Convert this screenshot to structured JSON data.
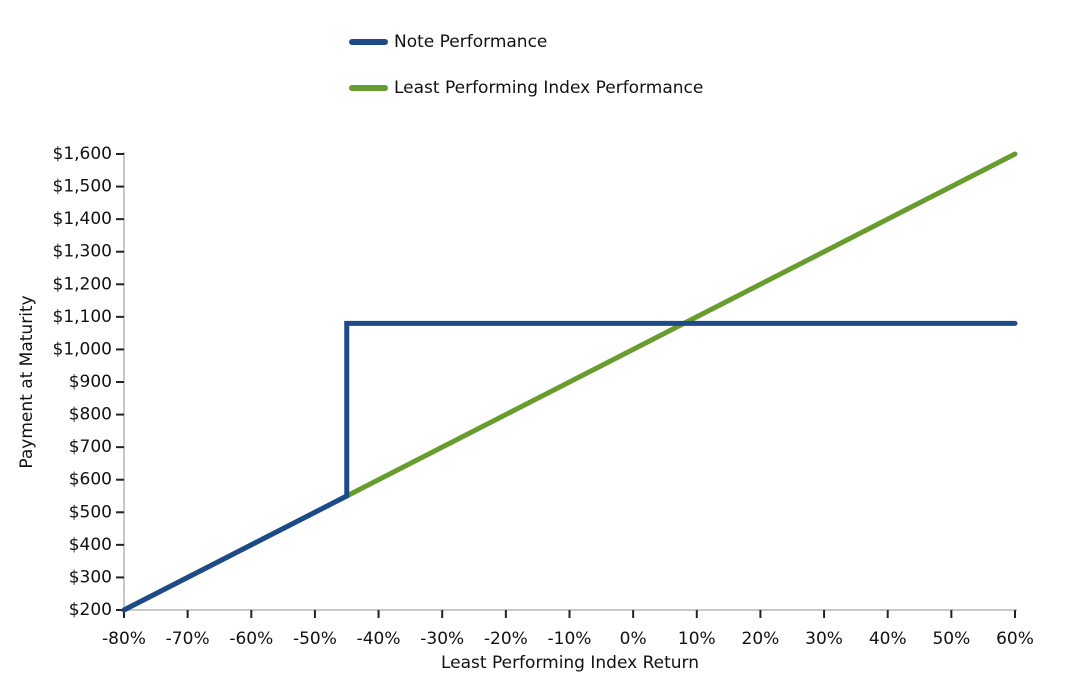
{
  "chart_data": {
    "type": "line",
    "x_label": "Least Performing Index Return",
    "y_label": "Payment at Maturity",
    "series": [
      {
        "name": "Note Performance",
        "color": "#1f4a8a",
        "x": [
          -80,
          -45,
          -45,
          60
        ],
        "values": [
          200,
          550,
          1080,
          1080
        ]
      },
      {
        "name": "Least Performing Index Performance",
        "color": "#689c2e",
        "x": [
          -80,
          60
        ],
        "values": [
          200,
          1600
        ]
      }
    ],
    "xlim": [
      -80,
      60
    ],
    "xticks": [
      {
        "value": -80,
        "label": "-80%"
      },
      {
        "value": -70,
        "label": "-70%"
      },
      {
        "value": -60,
        "label": "-60%"
      },
      {
        "value": -50,
        "label": "-50%"
      },
      {
        "value": -40,
        "label": "-40%"
      },
      {
        "value": -30,
        "label": "-30%"
      },
      {
        "value": -20,
        "label": "-20%"
      },
      {
        "value": -10,
        "label": "-10%"
      },
      {
        "value": 0,
        "label": "0%"
      },
      {
        "value": 10,
        "label": "10%"
      },
      {
        "value": 20,
        "label": "20%"
      },
      {
        "value": 30,
        "label": "30%"
      },
      {
        "value": 40,
        "label": "40%"
      },
      {
        "value": 50,
        "label": "50%"
      },
      {
        "value": 60,
        "label": "60%"
      }
    ],
    "ylim": [
      200,
      1600
    ],
    "yticks": [
      {
        "value": 200,
        "label": "$200"
      },
      {
        "value": 300,
        "label": "$300"
      },
      {
        "value": 400,
        "label": "$400"
      },
      {
        "value": 500,
        "label": "$500"
      },
      {
        "value": 600,
        "label": "$600"
      },
      {
        "value": 700,
        "label": "$700"
      },
      {
        "value": 800,
        "label": "$800"
      },
      {
        "value": 900,
        "label": "$900"
      },
      {
        "value": 1000,
        "label": "$1,000"
      },
      {
        "value": 1100,
        "label": "$1,100"
      },
      {
        "value": 1200,
        "label": "$1,200"
      },
      {
        "value": 1300,
        "label": "$1,300"
      },
      {
        "value": 1400,
        "label": "$1,400"
      },
      {
        "value": 1500,
        "label": "$1,500"
      },
      {
        "value": 1600,
        "label": "$1,600"
      }
    ]
  }
}
